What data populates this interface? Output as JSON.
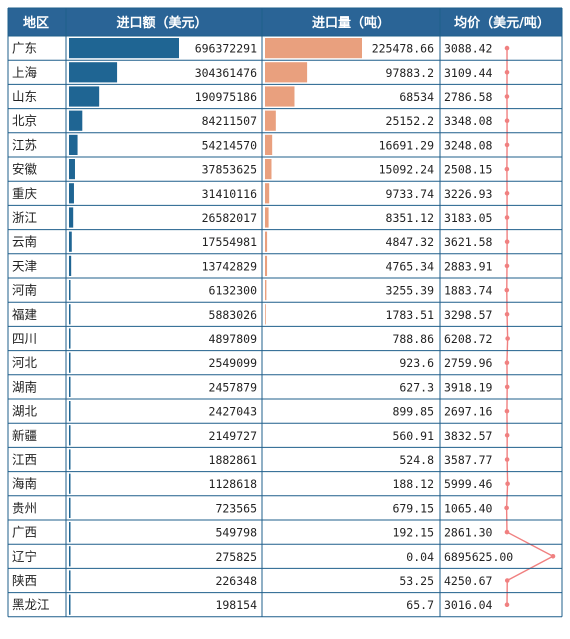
{
  "chart_data": {
    "type": "table",
    "headers": {
      "region": "地区",
      "import_value": "进口额（美元）",
      "import_volume": "进口量（吨）",
      "avg_price": "均价（美元/吨）"
    },
    "colors": {
      "header_bg": "#2a6496",
      "value_bar": "#1f6593",
      "volume_bar": "#e9a07e",
      "price_line": "#f08080",
      "grid": "#1f5f8b"
    },
    "rows": [
      {
        "region": "广东",
        "import_value": 696372291,
        "import_volume": 225478.66,
        "avg_price": 3088.42,
        "value_label": "696372291",
        "volume_label": "225478.66",
        "price_label": "3088.42"
      },
      {
        "region": "上海",
        "import_value": 304361476,
        "import_volume": 97883.2,
        "avg_price": 3109.44,
        "value_label": "304361476",
        "volume_label": "97883.2",
        "price_label": "3109.44"
      },
      {
        "region": "山东",
        "import_value": 190975186,
        "import_volume": 68534,
        "avg_price": 2786.58,
        "value_label": "190975186",
        "volume_label": "68534",
        "price_label": "2786.58"
      },
      {
        "region": "北京",
        "import_value": 84211507,
        "import_volume": 25152.2,
        "avg_price": 3348.08,
        "value_label": "84211507",
        "volume_label": "25152.2",
        "price_label": "3348.08"
      },
      {
        "region": "江苏",
        "import_value": 54214570,
        "import_volume": 16691.29,
        "avg_price": 3248.08,
        "value_label": "54214570",
        "volume_label": "16691.29",
        "price_label": "3248.08"
      },
      {
        "region": "安徽",
        "import_value": 37853625,
        "import_volume": 15092.24,
        "avg_price": 2508.15,
        "value_label": "37853625",
        "volume_label": "15092.24",
        "price_label": "2508.15"
      },
      {
        "region": "重庆",
        "import_value": 31410116,
        "import_volume": 9733.74,
        "avg_price": 3226.93,
        "value_label": "31410116",
        "volume_label": "9733.74",
        "price_label": "3226.93"
      },
      {
        "region": "浙江",
        "import_value": 26582017,
        "import_volume": 8351.12,
        "avg_price": 3183.05,
        "value_label": "26582017",
        "volume_label": "8351.12",
        "price_label": "3183.05"
      },
      {
        "region": "云南",
        "import_value": 17554981,
        "import_volume": 4847.32,
        "avg_price": 3621.58,
        "value_label": "17554981",
        "volume_label": "4847.32",
        "price_label": "3621.58"
      },
      {
        "region": "天津",
        "import_value": 13742829,
        "import_volume": 4765.34,
        "avg_price": 2883.91,
        "value_label": "13742829",
        "volume_label": "4765.34",
        "price_label": "2883.91"
      },
      {
        "region": "河南",
        "import_value": 6132300,
        "import_volume": 3255.39,
        "avg_price": 1883.74,
        "value_label": "6132300",
        "volume_label": "3255.39",
        "price_label": "1883.74"
      },
      {
        "region": "福建",
        "import_value": 5883026,
        "import_volume": 1783.51,
        "avg_price": 3298.57,
        "value_label": "5883026",
        "volume_label": "1783.51",
        "price_label": "3298.57"
      },
      {
        "region": "四川",
        "import_value": 4897809,
        "import_volume": 788.86,
        "avg_price": 6208.72,
        "value_label": "4897809",
        "volume_label": "788.86",
        "price_label": "6208.72"
      },
      {
        "region": "河北",
        "import_value": 2549099,
        "import_volume": 923.6,
        "avg_price": 2759.96,
        "value_label": "2549099",
        "volume_label": "923.6",
        "price_label": "2759.96"
      },
      {
        "region": "湖南",
        "import_value": 2457879,
        "import_volume": 627.3,
        "avg_price": 3918.19,
        "value_label": "2457879",
        "volume_label": "627.3",
        "price_label": "3918.19"
      },
      {
        "region": "湖北",
        "import_value": 2427043,
        "import_volume": 899.85,
        "avg_price": 2697.16,
        "value_label": "2427043",
        "volume_label": "899.85",
        "price_label": "2697.16"
      },
      {
        "region": "新疆",
        "import_value": 2149727,
        "import_volume": 560.91,
        "avg_price": 3832.57,
        "value_label": "2149727",
        "volume_label": "560.91",
        "price_label": "3832.57"
      },
      {
        "region": "江西",
        "import_value": 1882861,
        "import_volume": 524.8,
        "avg_price": 3587.77,
        "value_label": "1882861",
        "volume_label": "524.8",
        "price_label": "3587.77"
      },
      {
        "region": "海南",
        "import_value": 1128618,
        "import_volume": 188.12,
        "avg_price": 5999.46,
        "value_label": "1128618",
        "volume_label": "188.12",
        "price_label": "5999.46"
      },
      {
        "region": "贵州",
        "import_value": 723565,
        "import_volume": 679.15,
        "avg_price": 1065.4,
        "value_label": "723565",
        "volume_label": "679.15",
        "price_label": "1065.40"
      },
      {
        "region": "广西",
        "import_value": 549798,
        "import_volume": 192.15,
        "avg_price": 2861.3,
        "value_label": "549798",
        "volume_label": "192.15",
        "price_label": "2861.30"
      },
      {
        "region": "辽宁",
        "import_value": 275825,
        "import_volume": 0.04,
        "avg_price": 6895625.0,
        "value_label": "275825",
        "volume_label": "0.04",
        "price_label": "6895625.00"
      },
      {
        "region": "陕西",
        "import_value": 226348,
        "import_volume": 53.25,
        "avg_price": 4250.67,
        "value_label": "226348",
        "volume_label": "53.25",
        "price_label": "4250.67"
      },
      {
        "region": "黑龙江",
        "import_value": 198154,
        "import_volume": 65.7,
        "avg_price": 3016.04,
        "value_label": "198154",
        "volume_label": "65.7",
        "price_label": "3016.04"
      }
    ]
  }
}
